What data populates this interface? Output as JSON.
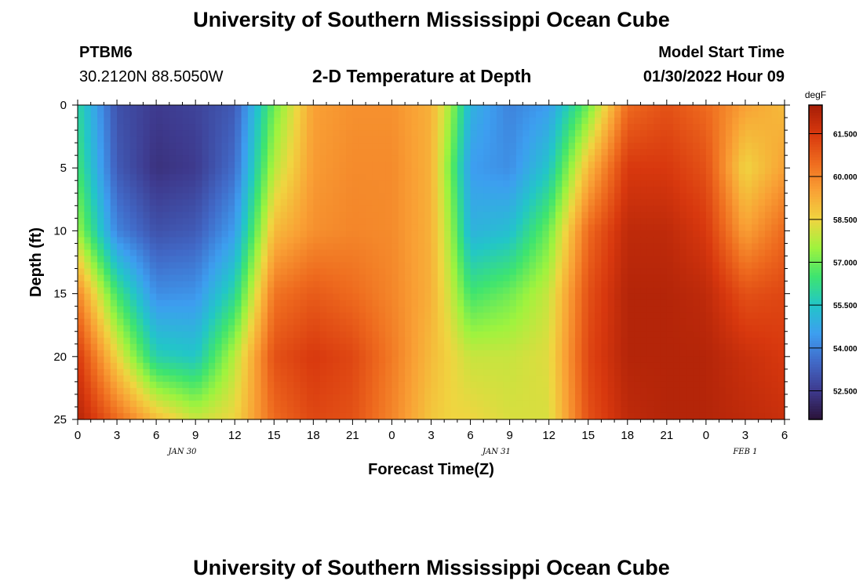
{
  "header": {
    "title": "University of Southern Mississippi Ocean Cube",
    "station_id": "PTBM6",
    "coordinates": "30.2120N  88.5050W",
    "subtitle": "2-D Temperature at Depth",
    "model_start_label": "Model Start Time",
    "model_start_value": "01/30/2022 Hour 09"
  },
  "footer": {
    "title": "University of Southern Mississippi Ocean Cube"
  },
  "chart_data": {
    "type": "heatmap",
    "title": "2-D Temperature at Depth",
    "xlabel": "Forecast Time(Z)",
    "ylabel": "Depth (ft)",
    "xlim": [
      0,
      54
    ],
    "ylim": [
      0,
      25
    ],
    "y_inverted": true,
    "x_tick_labels": [
      "0",
      "3",
      "6",
      "9",
      "12",
      "15",
      "18",
      "21",
      "0",
      "3",
      "6",
      "9",
      "12",
      "15",
      "18",
      "21",
      "0",
      "3",
      "6"
    ],
    "y_tick_labels": [
      "0",
      "5",
      "10",
      "15",
      "20",
      "25"
    ],
    "date_labels": [
      "JAN 30",
      "JAN 31",
      "FEB 1"
    ],
    "colorbar": {
      "unit": "degF",
      "min": 51.5,
      "max": 62.5,
      "tick_labels": [
        "52.500",
        "54.000",
        "55.500",
        "57.000",
        "58.500",
        "60.000",
        "61.500"
      ],
      "colors": [
        "#2a1238",
        "#3e3a8e",
        "#4169c7",
        "#3d9ef0",
        "#22c6c8",
        "#3ee46f",
        "#9ff33e",
        "#f0d540",
        "#f9a135",
        "#ee6a1e",
        "#d8380e",
        "#a51d07"
      ]
    },
    "depth_levels_ft": [
      0,
      5,
      10,
      15,
      20,
      25
    ],
    "time_hours": [
      0,
      3,
      6,
      9,
      12,
      15,
      18,
      21,
      24,
      27,
      28.5,
      30,
      33,
      36,
      39,
      42,
      45,
      48,
      51,
      54
    ],
    "values": [
      [
        56.0,
        53.0,
        52.5,
        52.7,
        53.2,
        57.0,
        59.5,
        59.8,
        59.8,
        59.2,
        57.5,
        55.0,
        54.0,
        54.5,
        57.0,
        60.5,
        61.0,
        60.5,
        59.5,
        59.0
      ],
      [
        56.5,
        53.2,
        52.3,
        52.5,
        53.6,
        57.8,
        59.6,
        59.9,
        59.9,
        59.2,
        57.0,
        54.5,
        54.2,
        55.5,
        59.0,
        61.5,
        61.5,
        61.0,
        58.5,
        59.5
      ],
      [
        57.5,
        54.0,
        53.0,
        53.2,
        54.5,
        59.0,
        59.8,
        60.0,
        59.9,
        59.2,
        57.5,
        55.0,
        55.3,
        57.0,
        60.5,
        62.0,
        62.0,
        61.5,
        59.5,
        60.5
      ],
      [
        60.0,
        56.5,
        54.2,
        54.3,
        56.0,
        60.3,
        60.8,
        60.5,
        60.0,
        59.2,
        58.0,
        56.5,
        57.0,
        58.0,
        61.0,
        62.2,
        62.2,
        62.0,
        61.0,
        61.2
      ],
      [
        61.5,
        58.5,
        55.8,
        55.5,
        57.8,
        61.0,
        61.5,
        61.2,
        60.2,
        59.0,
        58.5,
        58.0,
        58.0,
        58.3,
        61.2,
        62.2,
        62.2,
        62.2,
        61.8,
        61.5
      ],
      [
        62.2,
        60.5,
        59.0,
        58.0,
        58.5,
        60.5,
        61.2,
        61.0,
        60.0,
        58.8,
        58.5,
        58.5,
        58.2,
        58.2,
        61.0,
        62.0,
        62.2,
        62.2,
        62.0,
        61.8
      ]
    ]
  }
}
